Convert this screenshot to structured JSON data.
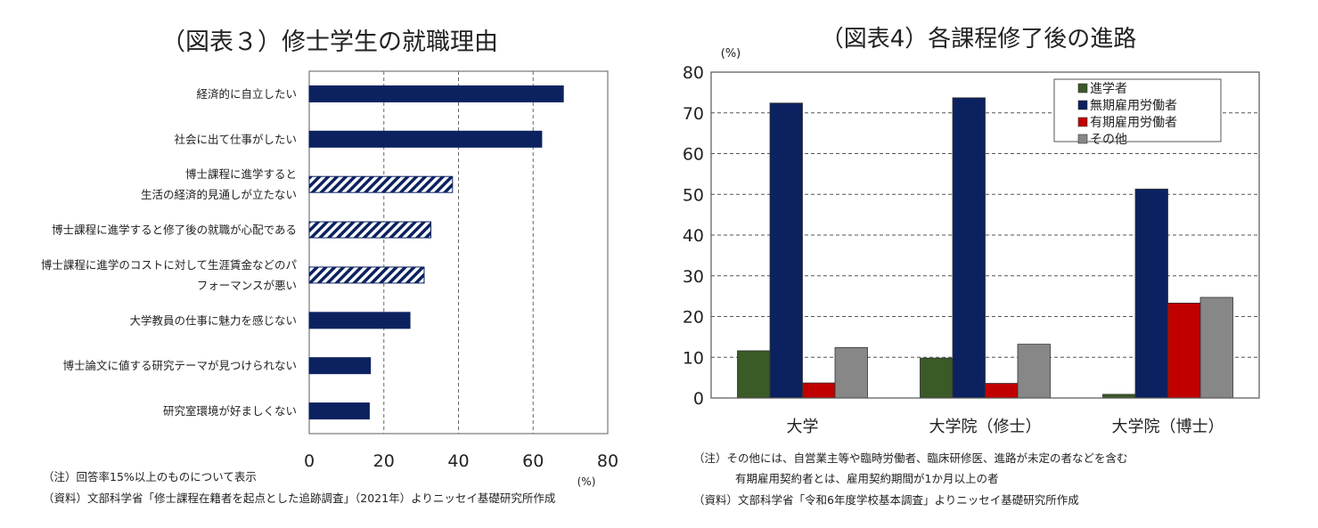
{
  "chart_data": [
    {
      "type": "bar",
      "orientation": "horizontal",
      "title": "（図表３）修士学生の就職理由",
      "unit_label": "(%)",
      "xlim": [
        0,
        80
      ],
      "xticks": [
        "0",
        "20",
        "40",
        "60",
        "80"
      ],
      "grid": "vertical dashed",
      "categories": [
        [
          "経済的に自立したい"
        ],
        [
          "社会に出て仕事がしたい"
        ],
        [
          "博士課程に進学すると",
          "生活の経済的見通しが立たない"
        ],
        [
          "博士課程に進学すると修了後の就職が心配である"
        ],
        [
          "博士課程に進学のコストに対して生涯賃金などのパ",
          "フォーマンスが悪い"
        ],
        [
          "大学教員の仕事に魅力を感じない"
        ],
        [
          "博士論文に値する研究テーマが見つけられない"
        ],
        [
          "研究室環境が好ましくない"
        ]
      ],
      "values": [
        68.1,
        62.3,
        38.4,
        32.6,
        30.8,
        27.0,
        16.4,
        16.1
      ],
      "hatched": [
        false,
        false,
        true,
        true,
        true,
        false,
        false,
        false
      ],
      "color": "#0c2260",
      "notes": [
        "（注）回答率15%以上のものについて表示",
        "（資料）文部科学省「修士課程在籍者を起点とした追跡調査」（2021年）よりニッセイ基礎研究所作成"
      ]
    },
    {
      "type": "bar",
      "title": "（図表4）各課程修了後の進路",
      "ylabel": "(%)",
      "ylim": [
        0,
        80
      ],
      "yticks": [
        "0",
        "10",
        "20",
        "30",
        "40",
        "50",
        "60",
        "70",
        "80"
      ],
      "grid": "horizontal dashed",
      "legend_position": "top-right",
      "categories": [
        "大学",
        "大学院（修士）",
        "大学院（博士）"
      ],
      "series": [
        {
          "name": "進学者",
          "color": "#3a5a27",
          "values": [
            11.6,
            9.8,
            0.9
          ]
        },
        {
          "name": "無期雇用労働者",
          "color": "#0c2260",
          "values": [
            72.4,
            73.7,
            51.3
          ]
        },
        {
          "name": "有期雇用労働者",
          "color": "#c00000",
          "values": [
            3.7,
            3.6,
            23.3
          ]
        },
        {
          "name": "その他",
          "color": "#878787",
          "values": [
            12.4,
            13.2,
            24.7
          ]
        }
      ],
      "notes": [
        "（注）その他には、自営業主等や臨時労働者、臨床研修医、進路が未定の者などを含む",
        "有期雇用契約者とは、雇用契約期間が1か月以上の者",
        "（資料）文部科学省「令和6年度学校基本調査」よりニッセイ基礎研究所作成"
      ]
    }
  ]
}
